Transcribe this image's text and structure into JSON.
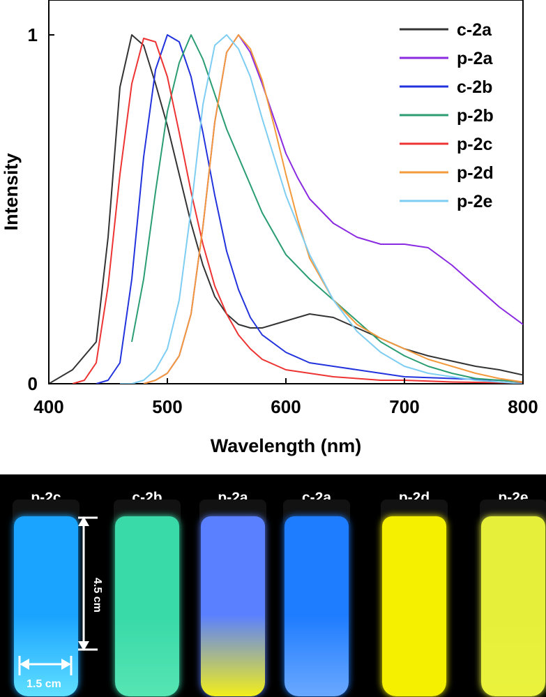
{
  "chart_data": {
    "type": "line",
    "xlabel": "Wavelength (nm)",
    "ylabel": "Intensity",
    "xlim": [
      400,
      800
    ],
    "ylim": [
      0,
      1
    ],
    "xticks": [
      400,
      500,
      600,
      700,
      800
    ],
    "yticks": [
      0,
      1
    ],
    "legend_position": "top-right",
    "series": [
      {
        "name": "c-2a",
        "color": "#333333",
        "x": [
          400,
          420,
          440,
          450,
          460,
          470,
          480,
          490,
          500,
          510,
          520,
          530,
          540,
          550,
          560,
          570,
          580,
          600,
          620,
          640,
          660,
          680,
          700,
          720,
          740,
          760,
          780,
          800
        ],
        "y": [
          0.0,
          0.04,
          0.12,
          0.42,
          0.85,
          1.0,
          0.97,
          0.86,
          0.74,
          0.6,
          0.46,
          0.34,
          0.25,
          0.2,
          0.17,
          0.16,
          0.16,
          0.18,
          0.2,
          0.19,
          0.16,
          0.13,
          0.1,
          0.08,
          0.065,
          0.05,
          0.04,
          0.025
        ]
      },
      {
        "name": "p-2a",
        "color": "#8a2be2",
        "x": [
          480,
          490,
          500,
          510,
          520,
          530,
          540,
          550,
          560,
          570,
          580,
          590,
          600,
          610,
          620,
          640,
          660,
          680,
          700,
          720,
          740,
          760,
          780,
          800
        ],
        "y": [
          0.0,
          0.01,
          0.03,
          0.08,
          0.2,
          0.45,
          0.75,
          0.95,
          1.0,
          0.95,
          0.86,
          0.76,
          0.66,
          0.59,
          0.53,
          0.46,
          0.42,
          0.4,
          0.4,
          0.39,
          0.34,
          0.28,
          0.22,
          0.17
        ]
      },
      {
        "name": "c-2b",
        "color": "#2233dd",
        "x": [
          440,
          450,
          460,
          470,
          480,
          490,
          500,
          510,
          520,
          530,
          540,
          550,
          560,
          570,
          580,
          600,
          620,
          640,
          660,
          680,
          700,
          740,
          780,
          800
        ],
        "y": [
          0.0,
          0.01,
          0.06,
          0.3,
          0.65,
          0.9,
          1.0,
          0.98,
          0.88,
          0.72,
          0.54,
          0.38,
          0.27,
          0.19,
          0.14,
          0.09,
          0.06,
          0.05,
          0.04,
          0.03,
          0.02,
          0.015,
          0.01,
          0.005
        ]
      },
      {
        "name": "p-2b",
        "color": "#2a9d72",
        "x": [
          470,
          480,
          490,
          500,
          510,
          520,
          530,
          540,
          550,
          560,
          570,
          580,
          600,
          620,
          640,
          660,
          680,
          700,
          720,
          740,
          760,
          780,
          800
        ],
        "y": [
          0.12,
          0.3,
          0.55,
          0.78,
          0.92,
          1.0,
          0.93,
          0.83,
          0.73,
          0.65,
          0.57,
          0.49,
          0.37,
          0.3,
          0.24,
          0.18,
          0.12,
          0.08,
          0.05,
          0.03,
          0.015,
          0.01,
          0.005
        ]
      },
      {
        "name": "p-2c",
        "color": "#ee3333",
        "x": [
          420,
          430,
          440,
          450,
          460,
          470,
          480,
          490,
          500,
          510,
          520,
          530,
          540,
          550,
          560,
          570,
          580,
          600,
          620,
          640,
          660,
          680,
          700,
          740,
          780,
          800
        ],
        "y": [
          0.0,
          0.01,
          0.06,
          0.28,
          0.6,
          0.86,
          0.99,
          0.98,
          0.88,
          0.72,
          0.55,
          0.4,
          0.28,
          0.2,
          0.14,
          0.1,
          0.07,
          0.04,
          0.03,
          0.02,
          0.015,
          0.01,
          0.01,
          0.005,
          0.003,
          0.002
        ]
      },
      {
        "name": "p-2d",
        "color": "#f39a3c",
        "x": [
          480,
          490,
          500,
          510,
          520,
          530,
          540,
          550,
          560,
          570,
          580,
          590,
          600,
          610,
          620,
          640,
          660,
          680,
          700,
          720,
          740,
          760,
          780,
          800
        ],
        "y": [
          0.0,
          0.01,
          0.03,
          0.08,
          0.2,
          0.45,
          0.75,
          0.95,
          1.0,
          0.96,
          0.87,
          0.74,
          0.6,
          0.47,
          0.36,
          0.24,
          0.17,
          0.13,
          0.1,
          0.07,
          0.05,
          0.03,
          0.015,
          0.005
        ]
      },
      {
        "name": "p-2e",
        "color": "#7ecdf2",
        "x": [
          460,
          470,
          480,
          490,
          500,
          510,
          520,
          530,
          540,
          550,
          560,
          570,
          580,
          600,
          620,
          640,
          660,
          680,
          700,
          720,
          740,
          760,
          780,
          800
        ],
        "y": [
          0.0,
          0.0,
          0.01,
          0.04,
          0.1,
          0.24,
          0.5,
          0.8,
          0.97,
          1.0,
          0.96,
          0.88,
          0.76,
          0.54,
          0.37,
          0.24,
          0.15,
          0.09,
          0.05,
          0.03,
          0.02,
          0.01,
          0.005,
          0.0
        ]
      }
    ]
  },
  "photo": {
    "vials": [
      {
        "label": "p-2c",
        "color": "#1aa3ff",
        "fill_color": "#5fe0ff"
      },
      {
        "label": "c-2b",
        "color": "#39d9a8",
        "fill_color": "#56e5b3"
      },
      {
        "label": "p-2a",
        "color": "#5a80ff",
        "fill_color": "#f2ee1a"
      },
      {
        "label": "c-2a",
        "color": "#1e7cff",
        "fill_color": "#6aa8ff"
      },
      {
        "label": "p-2d",
        "color": "#f5f000",
        "fill_color": "#f5f000"
      },
      {
        "label": "p-2e",
        "color": "#e6f03a",
        "fill_color": "#eaf23c"
      }
    ],
    "height_label": "4.5 cm",
    "width_label": "1.5 cm"
  }
}
